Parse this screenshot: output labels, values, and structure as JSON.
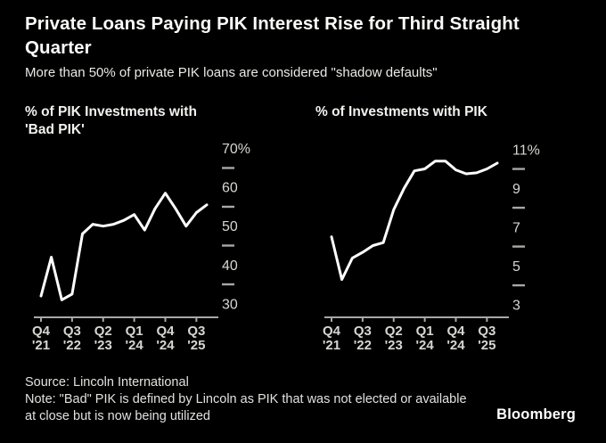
{
  "header": {
    "title": "Private Loans Paying PIK Interest Rise for Third Straight Quarter",
    "subtitle": "More than 50% of private PIK loans are considered \"shadow defaults\""
  },
  "colors": {
    "background": "#000000",
    "line": "#ffffff",
    "axis": "#a8a8a4",
    "tick_label": "#d6d6d2",
    "minor_tick": "#a8a8a4",
    "title_text": "#fbfbf9"
  },
  "chart_data": [
    {
      "type": "line",
      "title": "% of PIK Investments with 'Bad PIK'",
      "title_lines": [
        "% of PIK Investments with",
        "'Bad PIK'"
      ],
      "x": [
        "Q4 '21",
        "Q1 '22",
        "Q2 '22",
        "Q3 '22",
        "Q4 '22",
        "Q1 '23",
        "Q2 '23",
        "Q3 '23",
        "Q4 '23",
        "Q1 '24",
        "Q2 '24",
        "Q3 '24",
        "Q4 '24",
        "Q1 '25",
        "Q2 '25",
        "Q3 '25",
        "Q4 '25"
      ],
      "values": [
        32,
        42,
        31,
        32.5,
        48,
        50.5,
        50,
        50.5,
        51.5,
        53,
        49,
        54.5,
        58.5,
        54.5,
        50,
        53.5,
        55.5
      ],
      "x_tick_indices": [
        0,
        3,
        6,
        9,
        12,
        15
      ],
      "x_tick_labels": [
        [
          "Q4",
          "'21"
        ],
        [
          "Q3",
          "'22"
        ],
        [
          "Q2",
          "'23"
        ],
        [
          "Q1",
          "'24"
        ],
        [
          "Q4",
          "'24"
        ],
        [
          "Q3",
          "'25"
        ]
      ],
      "yticks": [
        {
          "value": 70,
          "label": "70%"
        },
        {
          "value": 60,
          "label": "60"
        },
        {
          "value": 50,
          "label": "50"
        },
        {
          "value": 40,
          "label": "40"
        },
        {
          "value": 30,
          "label": "30"
        }
      ],
      "yminor": [
        65,
        55,
        45,
        35
      ],
      "ylim": [
        26.5,
        72
      ],
      "grid": false,
      "legend": "none",
      "line_color": "#ffffff"
    },
    {
      "type": "line",
      "title": "% of Investments with PIK",
      "title_lines": [
        "% of Investments with PIK"
      ],
      "x": [
        "Q4 '21",
        "Q1 '22",
        "Q2 '22",
        "Q3 '22",
        "Q4 '22",
        "Q1 '23",
        "Q2 '23",
        "Q3 '23",
        "Q4 '23",
        "Q1 '24",
        "Q2 '24",
        "Q3 '24",
        "Q4 '24",
        "Q1 '25",
        "Q2 '25",
        "Q3 '25",
        "Q4 '25"
      ],
      "values": [
        6.5,
        4.3,
        5.4,
        5.7,
        6.05,
        6.2,
        7.9,
        9.0,
        9.9,
        10.0,
        10.4,
        10.4,
        9.95,
        9.75,
        9.8,
        10.0,
        10.3
      ],
      "x_tick_indices": [
        0,
        3,
        6,
        9,
        12,
        15
      ],
      "x_tick_labels": [
        [
          "Q4",
          "'21"
        ],
        [
          "Q3",
          "'22"
        ],
        [
          "Q2",
          "'23"
        ],
        [
          "Q1",
          "'24"
        ],
        [
          "Q4",
          "'24"
        ],
        [
          "Q3",
          "'25"
        ]
      ],
      "yticks": [
        {
          "value": 11,
          "label": "11%"
        },
        {
          "value": 9,
          "label": "9"
        },
        {
          "value": 7,
          "label": "7"
        },
        {
          "value": 5,
          "label": "5"
        },
        {
          "value": 3,
          "label": "3"
        }
      ],
      "yminor": [
        10,
        8,
        6,
        4
      ],
      "ylim": [
        2.35,
        11.45
      ],
      "grid": false,
      "legend": "none",
      "line_color": "#ffffff"
    }
  ],
  "footer": {
    "source": "Source: Lincoln International",
    "note": "Note: \"Bad\" PIK is defined by Lincoln as PIK that was not elected or available at close but is now being utilized",
    "brand": "Bloomberg"
  }
}
